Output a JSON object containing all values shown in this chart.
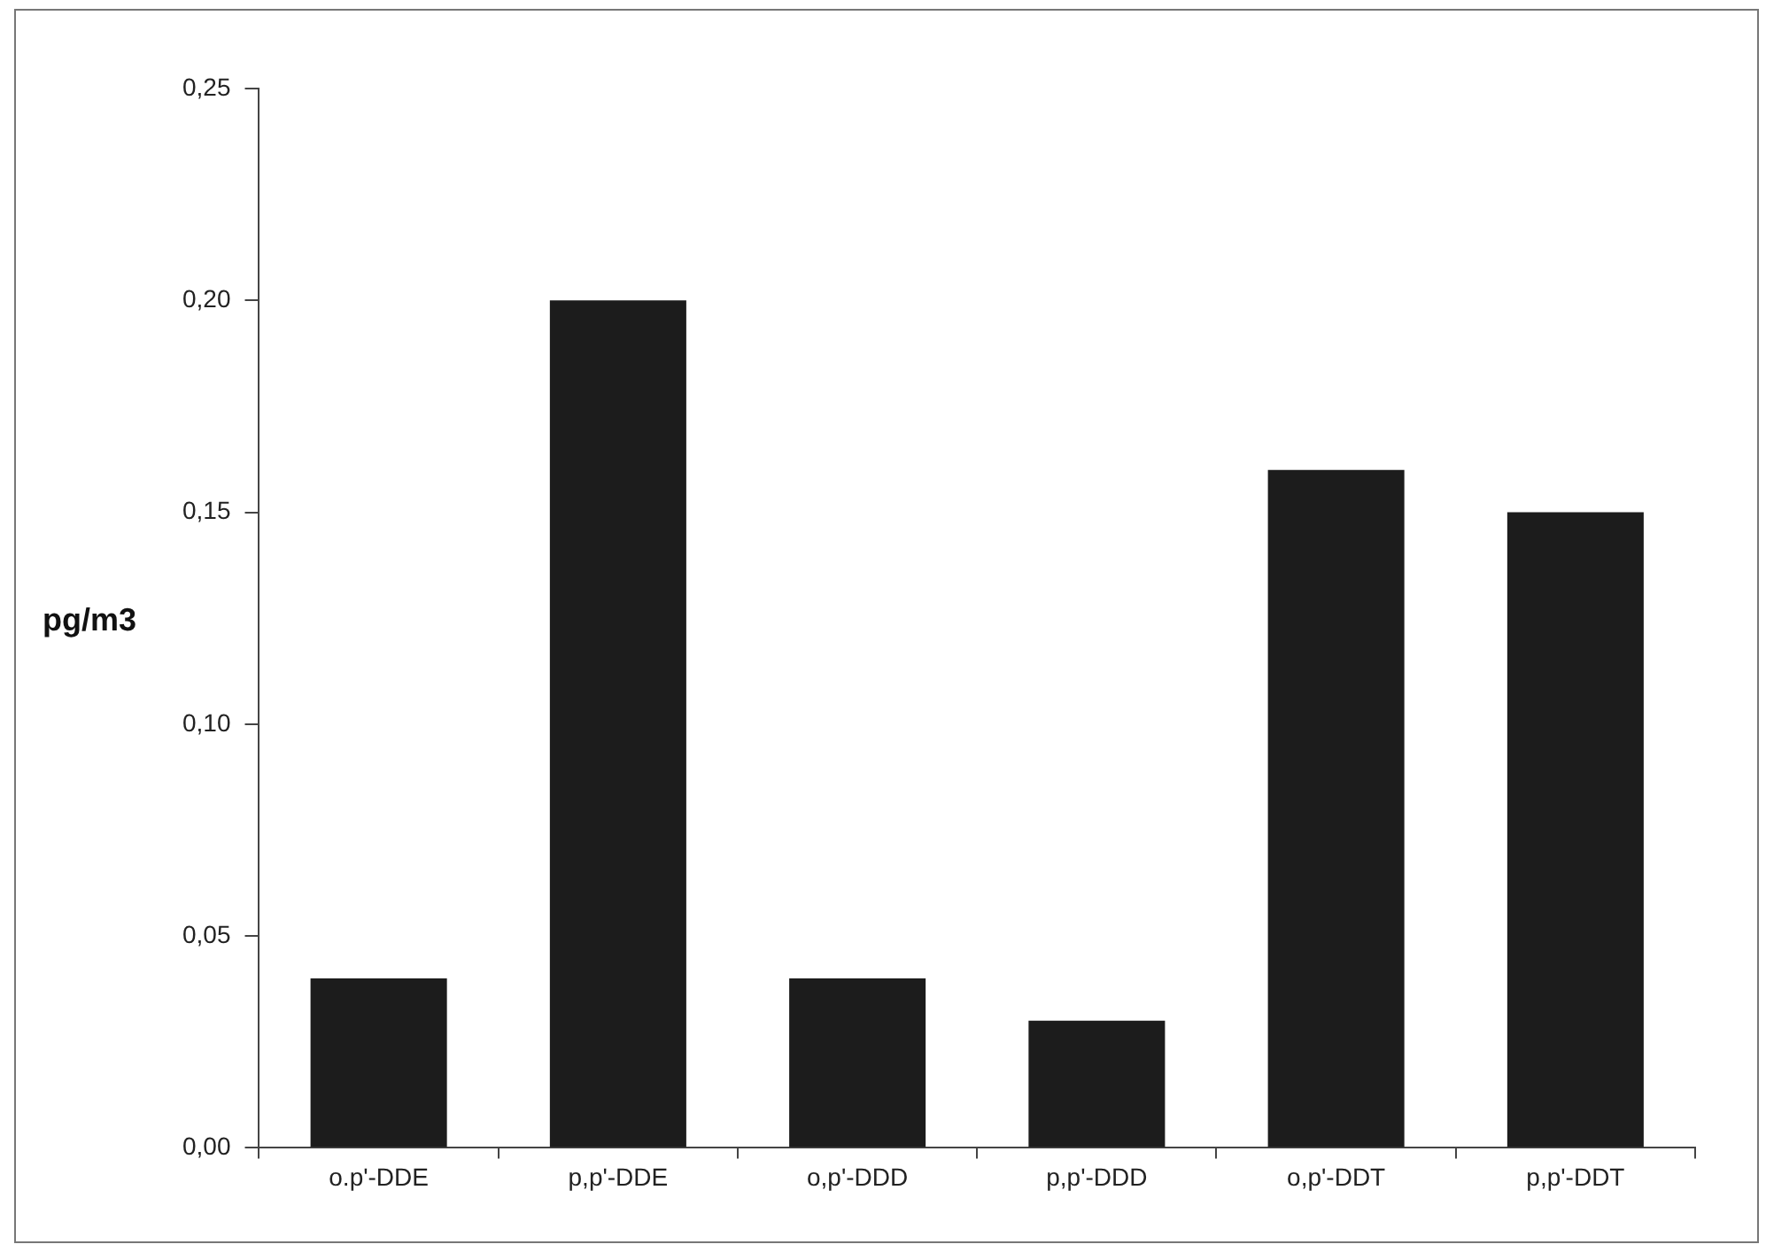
{
  "chart_data": {
    "type": "bar",
    "ylabel": "pg/m3",
    "categories": [
      "o.p'-DDE",
      "p,p'-DDE",
      "o,p'-DDD",
      "p,p'-DDD",
      "o,p'-DDT",
      "p,p'-DDT"
    ],
    "values": [
      0.04,
      0.2,
      0.04,
      0.03,
      0.16,
      0.15
    ],
    "color": "#1c1c1c",
    "ylim": [
      0,
      0.25
    ],
    "yticks": [
      {
        "value": 0,
        "label": "0,00"
      },
      {
        "value": 0.05,
        "label": "0,05"
      },
      {
        "value": 0.1,
        "label": "0,10"
      },
      {
        "value": 0.15,
        "label": "0,15"
      },
      {
        "value": 0.2,
        "label": "0,20"
      },
      {
        "value": 0.25,
        "label": "0,25"
      }
    ],
    "grid": false,
    "legend": false
  }
}
